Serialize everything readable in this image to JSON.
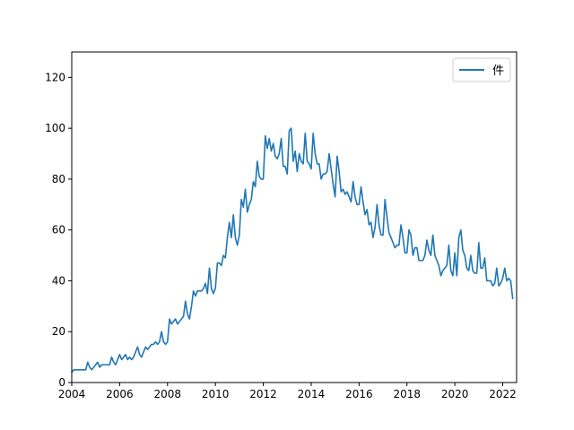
{
  "chart_data": {
    "type": "line",
    "title": "",
    "xlabel": "",
    "ylabel": "",
    "xlim": [
      2004.0,
      2022.58
    ],
    "ylim": [
      0,
      130
    ],
    "x_ticks": [
      2004,
      2006,
      2008,
      2010,
      2012,
      2014,
      2016,
      2018,
      2020,
      2022
    ],
    "y_ticks": [
      0,
      20,
      40,
      60,
      80,
      100,
      120
    ],
    "grid": false,
    "legend_position": "top-right",
    "x_start": "2004-01",
    "series": [
      {
        "name": "件",
        "color": "#1f77b4",
        "values": [
          4,
          5,
          5,
          5,
          5,
          5,
          5,
          5,
          8,
          6,
          5,
          6,
          7,
          8,
          6,
          7,
          7,
          7,
          7,
          7,
          10,
          8,
          7,
          9,
          11,
          9,
          10,
          11,
          9,
          10,
          9,
          10,
          12,
          14,
          11,
          10,
          12,
          14,
          13,
          14,
          15,
          15,
          16,
          15,
          16,
          20,
          16,
          15,
          16,
          25,
          23,
          24,
          25,
          23,
          24,
          25,
          26,
          32,
          27,
          25,
          30,
          36,
          34,
          36,
          36,
          36,
          37,
          39,
          35,
          45,
          37,
          35,
          37,
          47,
          47,
          46,
          50,
          49,
          57,
          63,
          57,
          66,
          57,
          54,
          58,
          72,
          69,
          76,
          67,
          70,
          72,
          79,
          77,
          87,
          81,
          80,
          80,
          97,
          92,
          96,
          91,
          94,
          89,
          88,
          90,
          96,
          85,
          85,
          82,
          99,
          100,
          87,
          91,
          83,
          90,
          87,
          86,
          98,
          87,
          86,
          84,
          98,
          90,
          86,
          86,
          80,
          82,
          82,
          83,
          90,
          84,
          78,
          73,
          89,
          83,
          75,
          76,
          74,
          75,
          73,
          71,
          79,
          73,
          70,
          70,
          77,
          71,
          66,
          68,
          62,
          63,
          57,
          61,
          70,
          62,
          58,
          58,
          72,
          65,
          59,
          57,
          55,
          53,
          54,
          54,
          62,
          57,
          51,
          51,
          60,
          58,
          50,
          53,
          53,
          48,
          48,
          48,
          50,
          56,
          52,
          50,
          58,
          50,
          48,
          46,
          42,
          44,
          45,
          46,
          54,
          44,
          42,
          51,
          42,
          57,
          60,
          52,
          50,
          45,
          44,
          50,
          44,
          43,
          43,
          55,
          45,
          45,
          49,
          40,
          40,
          40,
          38,
          39,
          45,
          38,
          39,
          41,
          45,
          40,
          41,
          40,
          33
        ]
      }
    ]
  }
}
